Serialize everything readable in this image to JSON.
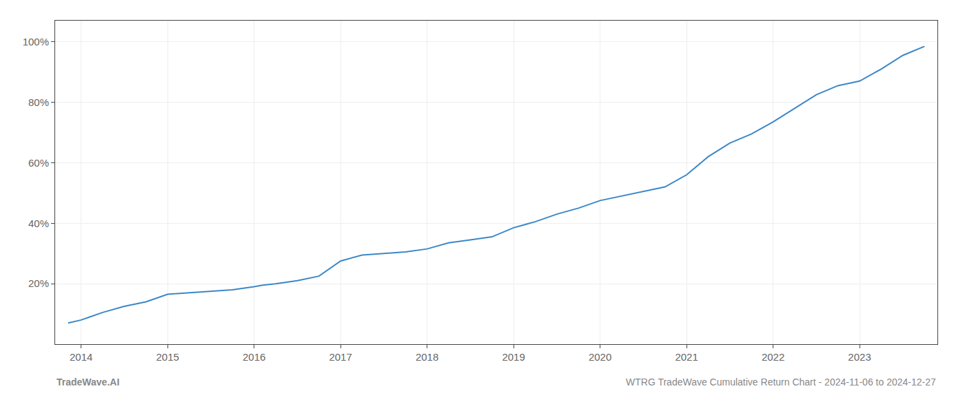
{
  "chart_data": {
    "type": "line",
    "x": [
      2013.85,
      2014.0,
      2014.1,
      2014.25,
      2014.5,
      2014.75,
      2015.0,
      2015.25,
      2015.5,
      2015.75,
      2016.0,
      2016.1,
      2016.25,
      2016.5,
      2016.75,
      2017.0,
      2017.25,
      2017.5,
      2017.75,
      2018.0,
      2018.25,
      2018.5,
      2018.75,
      2019.0,
      2019.25,
      2019.5,
      2019.75,
      2020.0,
      2020.25,
      2020.5,
      2020.75,
      2021.0,
      2021.25,
      2021.5,
      2021.75,
      2022.0,
      2022.25,
      2022.5,
      2022.75,
      2023.0,
      2023.25,
      2023.5,
      2023.75
    ],
    "values": [
      7.0,
      8.0,
      9.0,
      10.5,
      12.5,
      14.0,
      16.5,
      17.0,
      17.5,
      18.0,
      19.0,
      19.5,
      20.0,
      21.0,
      22.5,
      27.5,
      29.5,
      30.0,
      30.5,
      31.5,
      33.5,
      34.5,
      35.5,
      38.5,
      40.5,
      43.0,
      45.0,
      47.5,
      49.0,
      50.5,
      52.0,
      56.0,
      62.0,
      66.5,
      69.5,
      73.5,
      78.0,
      82.5,
      85.5,
      87.0,
      91.0,
      95.5,
      98.5
    ],
    "color": "#3a87c8",
    "xlim": [
      2013.7,
      2023.9
    ],
    "xticks": [
      2014,
      2015,
      2016,
      2017,
      2018,
      2019,
      2020,
      2021,
      2022,
      2023
    ],
    "ylim": [
      0,
      107
    ],
    "yticks": [
      {
        "value": 20,
        "label": "20%"
      },
      {
        "value": 40,
        "label": "40%"
      },
      {
        "value": 60,
        "label": "60%"
      },
      {
        "value": 80,
        "label": "80%"
      },
      {
        "value": 100,
        "label": "100%"
      }
    ],
    "grid": true,
    "annotations": [
      "TradeWave.AI",
      "WTRG TradeWave Cumulative Return Chart - 2024-11-06 to 2024-12-27"
    ]
  }
}
